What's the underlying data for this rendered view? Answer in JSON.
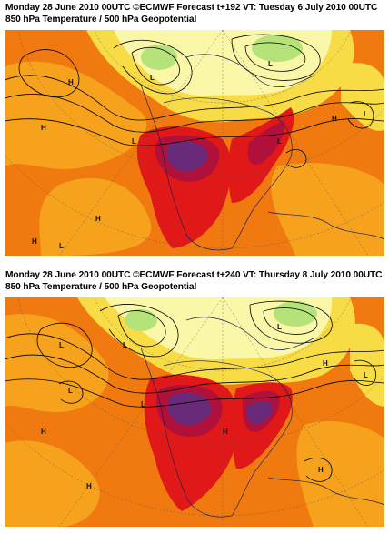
{
  "panels": [
    {
      "title_line1": "Monday 28 June 2010 00UTC ©ECMWF Forecast t+192 VT: Tuesday 6 July 2010 00UTC",
      "title_line2": "850 hPa Temperature / 500 hPa Geopotential"
    },
    {
      "title_line1": "Monday 28 June 2010 00UTC ©ECMWF Forecast t+240 VT: Thursday 8 July 2010 00UTC",
      "title_line2": "850 hPa Temperature / 500 hPa Geopotential"
    }
  ],
  "colors": {
    "background_warm": "#f07a10",
    "orange_light": "#f6a21c",
    "yellow": "#f8dc46",
    "pale_yellow": "#fbf7a8",
    "green": "#b6e27a",
    "red_hot": "#e01818",
    "crimson": "#b0103a",
    "purple": "#6a2a7a",
    "contour": "#000000",
    "coast": "#202050"
  }
}
